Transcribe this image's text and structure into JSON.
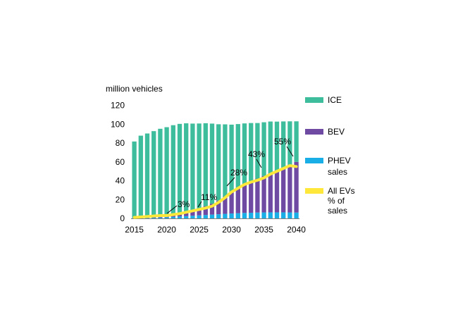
{
  "chart_data": {
    "type": "bar",
    "stacked": true,
    "y_unit_label": "million vehicles",
    "x": [
      2015,
      2016,
      2017,
      2018,
      2019,
      2020,
      2021,
      2022,
      2023,
      2024,
      2025,
      2026,
      2027,
      2028,
      2029,
      2030,
      2031,
      2032,
      2033,
      2034,
      2035,
      2036,
      2037,
      2038,
      2039,
      2040
    ],
    "x_ticks": [
      2015,
      2020,
      2025,
      2030,
      2035,
      2040
    ],
    "y_ticks": [
      0,
      20,
      40,
      60,
      80,
      100,
      120
    ],
    "ylim": [
      0,
      120
    ],
    "series": [
      {
        "name": "PHEV sales",
        "color": "#1aaee6",
        "values": [
          0.3,
          0.4,
          0.5,
          0.7,
          0.9,
          1.2,
          1.6,
          2.0,
          2.4,
          2.8,
          3.2,
          3.6,
          4.0,
          4.4,
          4.8,
          5.2,
          5.5,
          5.8,
          6.0,
          6.2,
          6.3,
          6.4,
          6.4,
          6.4,
          6.3,
          6.2
        ]
      },
      {
        "name": "BEV",
        "color": "#6e4aa3",
        "values": [
          0.3,
          0.4,
          0.6,
          0.9,
          1.2,
          1.6,
          2.3,
          3.3,
          4.5,
          5.8,
          7.5,
          9.4,
          11.6,
          14.5,
          18.0,
          22.3,
          26.6,
          30.0,
          33.2,
          36.0,
          38.7,
          41.4,
          44.3,
          47.5,
          50.7,
          53.8
        ]
      },
      {
        "name": "ICE",
        "color": "#3dbd9b",
        "values": [
          81,
          87,
          89,
          91,
          93,
          94,
          95,
          95,
          94,
          92,
          90,
          88,
          85,
          81,
          77,
          72,
          68,
          65,
          62,
          59,
          57,
          55,
          52,
          49,
          46,
          43
        ]
      },
      {
        "name": "All EVs % of sales",
        "type": "line",
        "color": "#ffe83a",
        "values": [
          1,
          1.5,
          2,
          2.5,
          3,
          3,
          4,
          5,
          6.5,
          8,
          9.5,
          11,
          13,
          17,
          22,
          28,
          32,
          36,
          38.5,
          40.5,
          43,
          47,
          50,
          53,
          56,
          55
        ]
      }
    ],
    "annotations": [
      "3%",
      "11%",
      "28%",
      "43%",
      "55%"
    ],
    "legend": [
      {
        "label_lines": [
          "ICE"
        ],
        "color": "#3dbd9b"
      },
      {
        "label_lines": [
          "BEV"
        ],
        "color": "#6e4aa3"
      },
      {
        "label_lines": [
          "PHEV",
          "sales"
        ],
        "color": "#1aaee6"
      },
      {
        "label_lines": [
          "All EVs",
          "% of",
          "sales"
        ],
        "color": "#ffe83a"
      }
    ]
  }
}
